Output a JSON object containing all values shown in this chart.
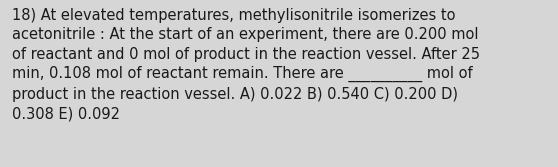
{
  "text": "18) At elevated temperatures, methylisonitrile isomerizes to\nacetonitrile : At the start of an experiment, there are 0.200 mol\nof reactant and 0 mol of product in the reaction vessel. After 25\nmin, 0.108 mol of reactant remain. There are __________ mol of\nproduct in the reaction vessel. A) 0.022 B) 0.540 C) 0.200 D)\n0.308 E) 0.092",
  "background_color": "#d6d6d6",
  "text_color": "#1a1a1a",
  "font_size": 10.5,
  "fig_width": 5.58,
  "fig_height": 1.67,
  "dpi": 100
}
